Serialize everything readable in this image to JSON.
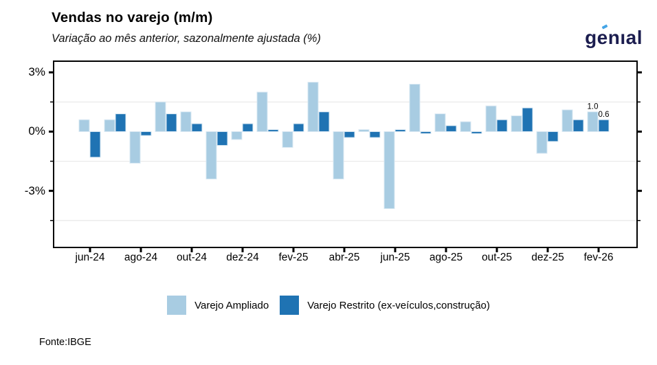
{
  "header": {
    "title": "Vendas no varejo (m/m)",
    "subtitle": "Variação ao mês anterior, sazonalmente ajustada (%)"
  },
  "logo": {
    "text": "genıal",
    "color": "#1b1d4f",
    "accent_color": "#45a5e6"
  },
  "footer": {
    "source": "Fonte:IBGE"
  },
  "legend": [
    {
      "label": "Varejo Ampliado",
      "color": "#a8cce2"
    },
    {
      "label": "Varejo Restrito (ex-veículos,construção)",
      "color": "#1f73b3"
    }
  ],
  "chart_data": {
    "type": "bar",
    "title": "Vendas no varejo (m/m)",
    "subtitle": "Variação ao mês anterior, sazonalmente ajustada (%)",
    "unit": "%",
    "categories": [
      "jun-24",
      "jul-24",
      "ago-24",
      "set-24",
      "out-24",
      "nov-24",
      "dez-24",
      "jan-25",
      "fev-25",
      "mar-25",
      "abr-25",
      "mai-25",
      "jun-25",
      "jul-25",
      "ago-25",
      "set-25",
      "out-25",
      "nov-25",
      "dez-25",
      "jan-26",
      "fev-26"
    ],
    "x_tick_labels": [
      "jun-24",
      "ago-24",
      "out-24",
      "dez-24",
      "fev-25",
      "abr-25",
      "jun-25",
      "ago-25",
      "out-25",
      "dez-25",
      "fev-26"
    ],
    "series": [
      {
        "name": "Varejo Ampliado",
        "color": "#a8cce2",
        "values": [
          0.6,
          0.6,
          -1.6,
          1.5,
          1.0,
          -2.4,
          -0.4,
          2.0,
          -0.8,
          2.5,
          -2.4,
          0.1,
          -3.9,
          2.4,
          0.9,
          0.5,
          1.3,
          0.8,
          -1.1,
          1.1,
          1.0
        ]
      },
      {
        "name": "Varejo Restrito (ex-veículos,construção)",
        "color": "#1f73b3",
        "values": [
          -1.3,
          0.9,
          -0.2,
          0.9,
          0.4,
          -0.7,
          0.4,
          0.1,
          0.4,
          1.0,
          -0.3,
          -0.3,
          0.1,
          -0.1,
          0.3,
          -0.1,
          0.6,
          1.2,
          -0.5,
          0.6,
          0.6
        ]
      }
    ],
    "point_labels": [
      {
        "index": 20,
        "series": 0,
        "text": "1.0"
      },
      {
        "index": 20,
        "series": 1,
        "text": "0.6"
      }
    ],
    "ylim": [
      -5.9,
      3.6
    ],
    "y_ticks_labeled": [
      {
        "value": 3,
        "label": "3%"
      },
      {
        "value": 0,
        "label": "0%"
      },
      {
        "value": -3,
        "label": "-3%"
      }
    ],
    "y_ticks_minor": [
      1.5,
      -1.5,
      -4.5
    ],
    "gridlines_at": [
      1.5,
      -1.5,
      -4.5
    ],
    "grid": "minor-horizontal-only",
    "legend_position": "bottom",
    "colors": {
      "grid": "#e9e9e9",
      "axis": "#000000",
      "bar_stroke": "#d9e8f3"
    }
  }
}
